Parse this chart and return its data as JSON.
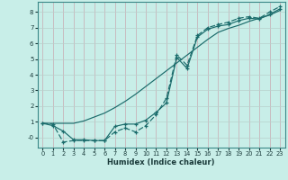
{
  "xlabel": "Humidex (Indice chaleur)",
  "bg_color": "#c8eee8",
  "grid_color_v": "#c8a8b0",
  "grid_color_h": "#b8d0cc",
  "line_color": "#1a6b6b",
  "xlim": [
    -0.5,
    23.5
  ],
  "ylim": [
    -0.65,
    8.65
  ],
  "xticks": [
    0,
    1,
    2,
    3,
    4,
    5,
    6,
    7,
    8,
    9,
    10,
    11,
    12,
    13,
    14,
    15,
    16,
    17,
    18,
    19,
    20,
    21,
    22,
    23
  ],
  "yticks": [
    0,
    1,
    2,
    3,
    4,
    5,
    6,
    7,
    8
  ],
  "ytick_labels": [
    "-0",
    "1",
    "2",
    "3",
    "4",
    "5",
    "6",
    "7",
    "8"
  ],
  "line1_x": [
    0,
    1,
    2,
    3,
    4,
    5,
    6,
    7,
    8,
    9,
    10,
    11,
    12,
    13,
    14,
    15,
    16,
    17,
    18,
    19,
    20,
    21,
    22,
    23
  ],
  "line1_y": [
    0.9,
    0.75,
    0.4,
    -0.15,
    -0.15,
    -0.2,
    -0.2,
    0.7,
    0.85,
    0.85,
    1.1,
    1.6,
    2.2,
    5.1,
    4.4,
    6.4,
    6.9,
    7.1,
    7.2,
    7.45,
    7.6,
    7.55,
    7.85,
    8.2
  ],
  "line2_x": [
    0,
    1,
    2,
    3,
    4,
    5,
    6,
    7,
    8,
    9,
    10,
    11,
    12,
    13,
    14,
    15,
    16,
    17,
    18,
    19,
    20,
    21,
    22,
    23
  ],
  "line2_y": [
    0.9,
    0.9,
    0.9,
    0.9,
    1.05,
    1.3,
    1.55,
    1.9,
    2.3,
    2.75,
    3.25,
    3.75,
    4.25,
    4.75,
    5.25,
    5.75,
    6.25,
    6.7,
    6.95,
    7.15,
    7.4,
    7.6,
    7.8,
    8.1
  ],
  "line3_x": [
    0,
    1,
    2,
    3,
    4,
    5,
    6,
    7,
    8,
    9,
    10,
    11,
    12,
    13,
    14,
    15,
    16,
    17,
    18,
    19,
    20,
    21,
    22,
    23
  ],
  "line3_y": [
    0.9,
    0.85,
    -0.3,
    -0.2,
    -0.2,
    -0.2,
    -0.2,
    0.35,
    0.6,
    0.35,
    0.75,
    1.45,
    2.5,
    5.25,
    4.6,
    6.5,
    7.0,
    7.2,
    7.35,
    7.6,
    7.7,
    7.6,
    8.0,
    8.35
  ]
}
